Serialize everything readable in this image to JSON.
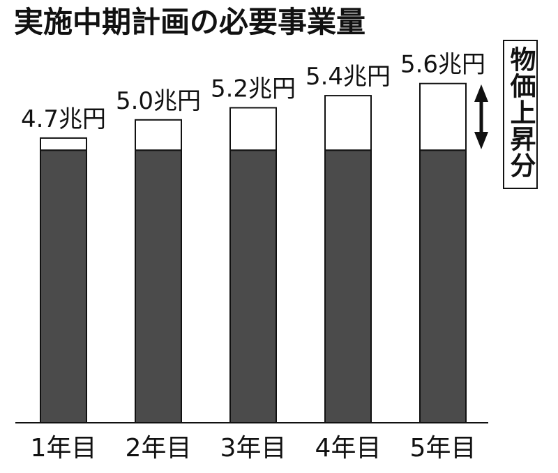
{
  "chart_data": {
    "type": "bar",
    "stacked": true,
    "title": "実施中期計画の必要事業量",
    "categories": [
      "1年目",
      "2年目",
      "3年目",
      "4年目",
      "5年目"
    ],
    "series": [
      {
        "values": [
          4.5,
          4.5,
          4.5,
          4.5,
          4.5
        ],
        "color": "#4b4b4b"
      },
      {
        "name": "物価上昇分",
        "values": [
          0.2,
          0.5,
          0.7,
          0.9,
          1.1
        ],
        "color": "#ffffff"
      }
    ],
    "totals": [
      4.7,
      5.0,
      5.2,
      5.4,
      5.6
    ],
    "data_labels": [
      "4.7兆円",
      "5.0兆円",
      "5.2兆円",
      "5.4兆円",
      "5.6兆円"
    ],
    "ylim": [
      0,
      6
    ],
    "grid": false,
    "legend": {
      "position": "right",
      "marker": "double-arrow-icon"
    }
  }
}
